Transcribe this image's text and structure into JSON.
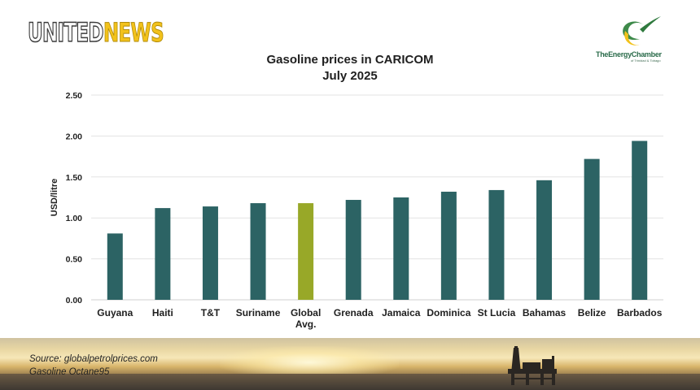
{
  "branding": {
    "left_logo_part1": "UNITED",
    "left_logo_part2": "NEWS",
    "right_logo_text": "TheEnergyChamber",
    "right_logo_sub": "of Trinidad & Tobago"
  },
  "chart_data": {
    "type": "bar",
    "title": "Gasoline prices in CARICOM",
    "subtitle": "July 2025",
    "ylabel": "USD/litre",
    "xlabel": "",
    "ylim": [
      0,
      2.5
    ],
    "yticks": [
      "0.00",
      "0.50",
      "1.00",
      "1.50",
      "2.00",
      "2.50"
    ],
    "grid": true,
    "categories": [
      [
        "Guyana"
      ],
      [
        "Haiti"
      ],
      [
        "T&T"
      ],
      [
        "Suriname"
      ],
      [
        "Global",
        "Avg."
      ],
      [
        "Grenada"
      ],
      [
        "Jamaica"
      ],
      [
        "Dominica"
      ],
      [
        "St Lucia"
      ],
      [
        "Bahamas"
      ],
      [
        "Belize"
      ],
      [
        "Barbados"
      ]
    ],
    "values": [
      0.81,
      1.12,
      1.14,
      1.18,
      1.18,
      1.22,
      1.25,
      1.32,
      1.34,
      1.46,
      1.72,
      1.94
    ],
    "bar_colors": [
      "#2c6364",
      "#2c6364",
      "#2c6364",
      "#2c6364",
      "#98a828",
      "#2c6364",
      "#2c6364",
      "#2c6364",
      "#2c6364",
      "#2c6364",
      "#2c6364",
      "#2c6364"
    ]
  },
  "footer": {
    "source": "Source: globalpetrolprices.com",
    "fuel": "Gasoline Octane95"
  }
}
